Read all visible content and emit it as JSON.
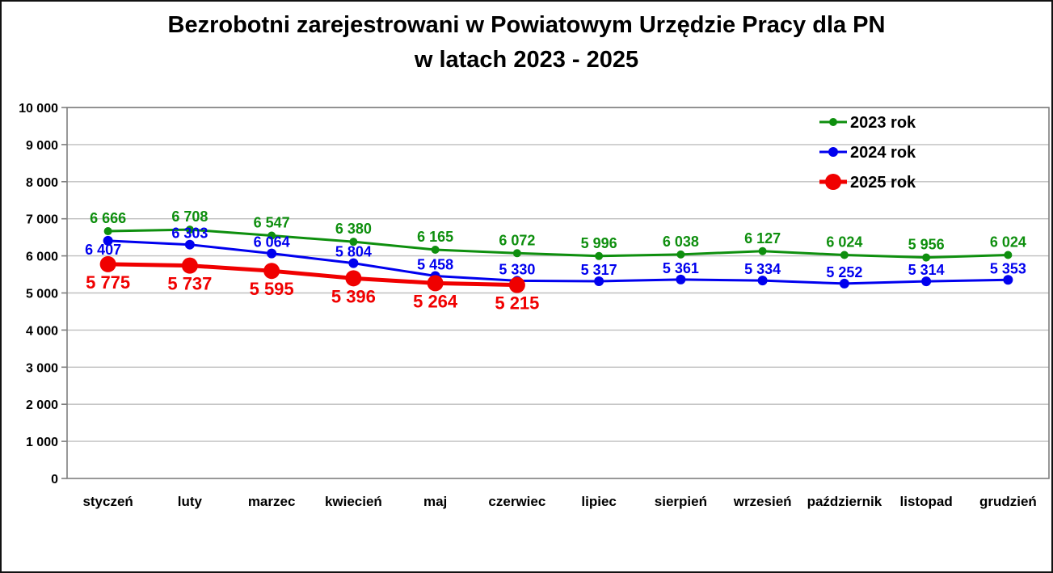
{
  "title": {
    "line1": "Bezrobotni zarejestrowani w Powiatowym Urzędzie Pracy dla PN",
    "line2": "w latach 2023 - 2025"
  },
  "chart_data": {
    "type": "line",
    "categories": [
      "styczeń",
      "luty",
      "marzec",
      "kwiecień",
      "maj",
      "czerwiec",
      "lipiec",
      "sierpień",
      "wrzesień",
      "październik",
      "listopad",
      "grudzień"
    ],
    "series": [
      {
        "name": "2023 rok",
        "color": "#0e8f0e",
        "marker_radius": 5,
        "line_width": 3,
        "label_position": "above",
        "values": [
          6666,
          6708,
          6547,
          6380,
          6165,
          6072,
          5996,
          6038,
          6127,
          6024,
          5956,
          6024
        ]
      },
      {
        "name": "2024 rok",
        "color": "#0000ee",
        "marker_radius": 6,
        "line_width": 3,
        "label_position": "above",
        "label_position_overrides": {
          "0": "below"
        },
        "values": [
          6407,
          6303,
          6064,
          5804,
          5458,
          5330,
          5317,
          5361,
          5334,
          5252,
          5314,
          5353
        ]
      },
      {
        "name": "2025 rok",
        "color": "#f00000",
        "marker_radius": 10,
        "line_width": 5,
        "label_position": "below",
        "values": [
          5775,
          5737,
          5595,
          5396,
          5264,
          5215
        ]
      }
    ],
    "y_axis": {
      "min": 0,
      "max": 10000,
      "step": 1000,
      "tick_labels": [
        "0",
        "1 000",
        "2 000",
        "3 000",
        "4 000",
        "5 000",
        "6 000",
        "7 000",
        "8 000",
        "9 000",
        "10 000"
      ]
    },
    "grid": "horizontal",
    "legend_position": "top-right-inside",
    "legend_entries": [
      "2023 rok",
      "2024 rok",
      "2025 rok"
    ],
    "number_format": "space-thousands",
    "colors": {
      "gridline": "#bfbfbf",
      "plot_border": "#7f7f7f",
      "axis_text": "#000000",
      "legend_text": "#000000"
    }
  }
}
